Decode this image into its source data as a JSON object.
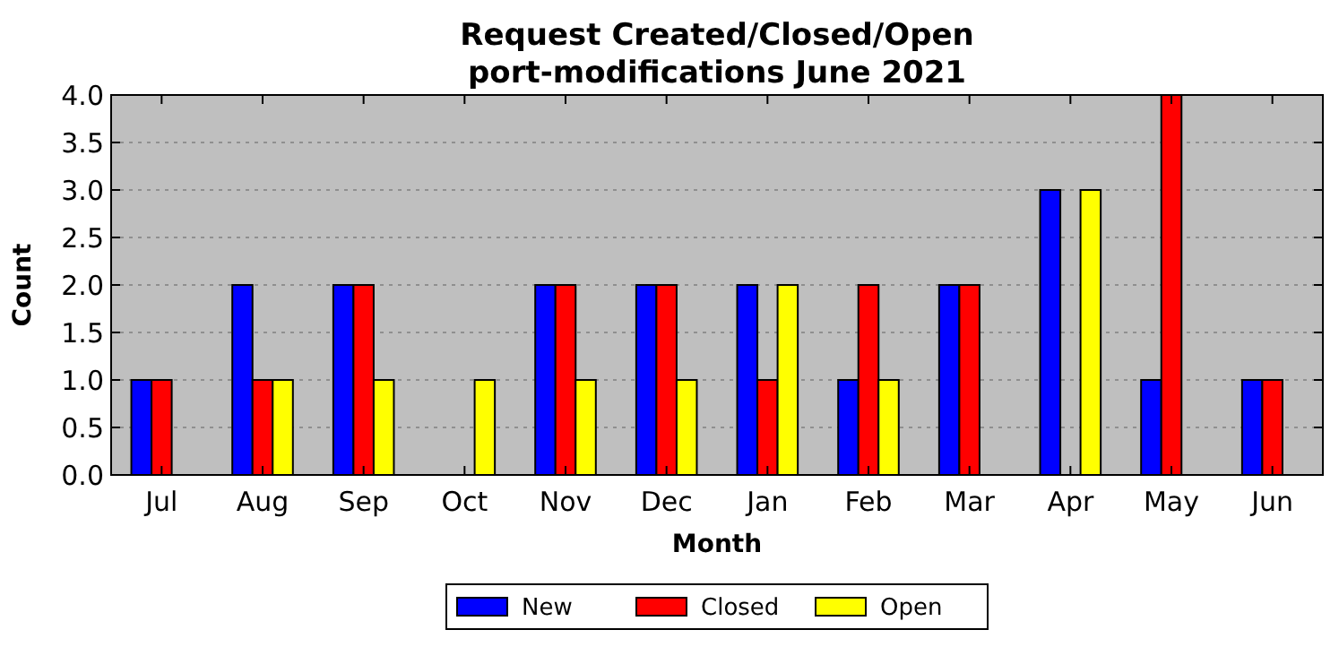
{
  "chart_data": {
    "type": "bar",
    "title": "Request Created/Closed/Open\nport-modifications June 2021",
    "xlabel": "Month",
    "ylabel": "Count",
    "categories": [
      "Jul",
      "Aug",
      "Sep",
      "Oct",
      "Nov",
      "Dec",
      "Jan",
      "Feb",
      "Mar",
      "Apr",
      "May",
      "Jun"
    ],
    "series": [
      {
        "name": "New",
        "color": "#0000ff",
        "values": [
          1,
          2,
          2,
          0,
          2,
          2,
          2,
          1,
          2,
          3,
          1,
          1
        ]
      },
      {
        "name": "Closed",
        "color": "#ff0000",
        "values": [
          1,
          1,
          2,
          0,
          2,
          2,
          1,
          2,
          2,
          0,
          4,
          1
        ]
      },
      {
        "name": "Open",
        "color": "#ffff00",
        "values": [
          0,
          1,
          1,
          1,
          1,
          1,
          2,
          1,
          0,
          3,
          0,
          0
        ]
      }
    ],
    "ylim": [
      0,
      4
    ],
    "yticks": [
      {
        "value": 0,
        "label": "0.0"
      },
      {
        "value": 0.5,
        "label": "0.5"
      },
      {
        "value": 1,
        "label": "1.0"
      },
      {
        "value": 1.5,
        "label": "1.5"
      },
      {
        "value": 2,
        "label": "2.0"
      },
      {
        "value": 2.5,
        "label": "2.5"
      },
      {
        "value": 3,
        "label": "3.0"
      },
      {
        "value": 3.5,
        "label": "3.5"
      },
      {
        "value": 4,
        "label": "4.0"
      }
    ],
    "grid": "y",
    "legend": "bottom"
  }
}
